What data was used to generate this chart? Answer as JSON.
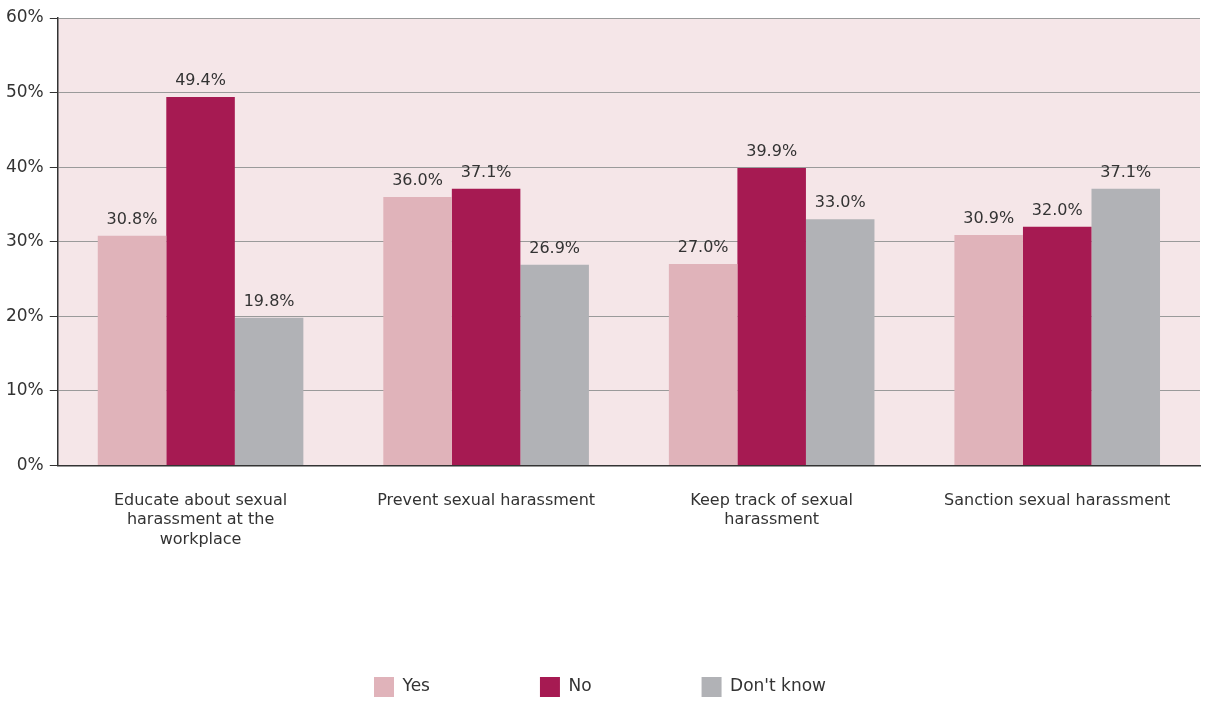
{
  "chart_data": {
    "type": "bar",
    "categories": [
      "Educate about sexual harassment at the workplace",
      "Prevent sexual harassment",
      "Keep track of sexual harassment",
      "Sanction sexual harassment"
    ],
    "series": [
      {
        "name": "Yes",
        "color": "#e0b3ba",
        "values": [
          30.8,
          36.0,
          27.0,
          30.9
        ],
        "value_labels": [
          "30.8%",
          "36.0%",
          "27.0%",
          "30.9%"
        ]
      },
      {
        "name": "No",
        "color": "#a61a52",
        "values": [
          49.4,
          37.1,
          39.9,
          32.0
        ],
        "value_labels": [
          "49.4%",
          "37.1%",
          "39.9%",
          "32.0%"
        ]
      },
      {
        "name": "Don't know",
        "color": "#b1b2b6",
        "values": [
          19.8,
          26.9,
          33.0,
          37.1
        ],
        "value_labels": [
          "19.8%",
          "26.9%",
          "33.0%",
          "37.1%"
        ]
      }
    ],
    "ylim": [
      0,
      60
    ],
    "yticks": [
      {
        "value": 0,
        "label": "0%"
      },
      {
        "value": 10,
        "label": "10%"
      },
      {
        "value": 20,
        "label": "20%"
      },
      {
        "value": 30,
        "label": "30%"
      },
      {
        "value": 40,
        "label": "40%"
      },
      {
        "value": 50,
        "label": "50%"
      },
      {
        "value": 60,
        "label": "60%"
      }
    ],
    "grid": "y",
    "legend": "bottom"
  }
}
